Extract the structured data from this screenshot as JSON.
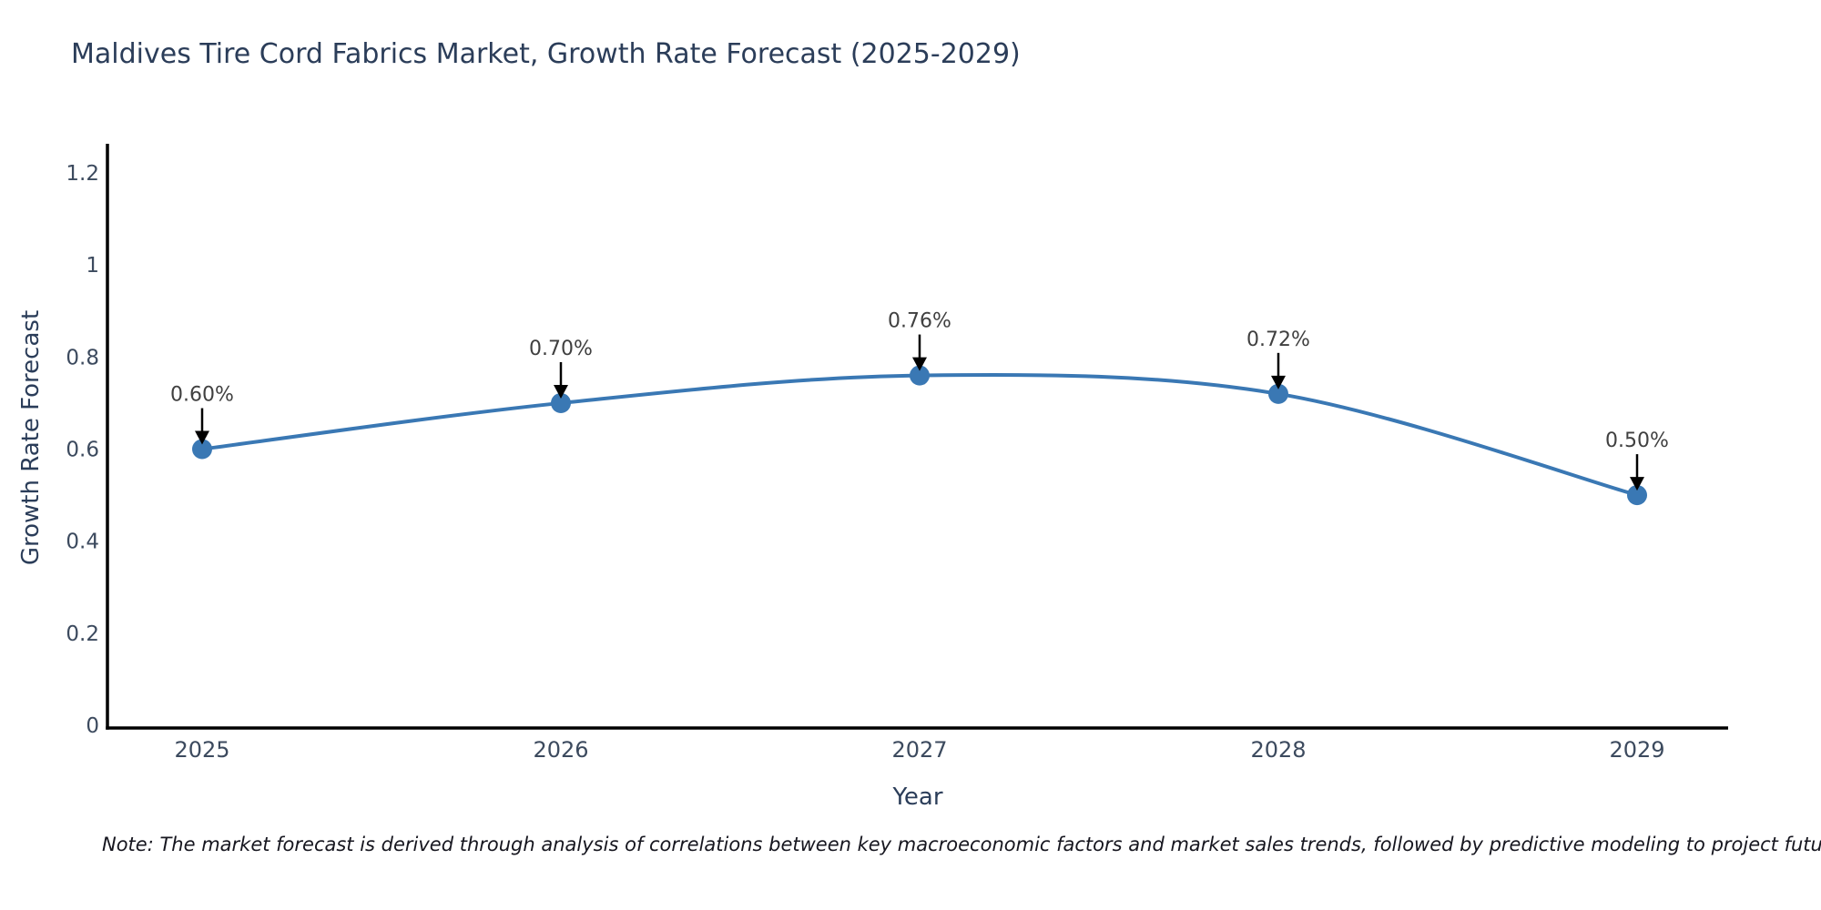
{
  "note": "Note: The market forecast is derived through analysis of correlations between key macroeconomic factors and market sales trends, followed by predictive modeling to project future sales",
  "chart_data": {
    "type": "line",
    "title": "Maldives Tire Cord Fabrics Market, Growth Rate Forecast (2025-2029)",
    "xlabel": "Year",
    "ylabel": "Growth Rate Forecast",
    "x": [
      2025,
      2026,
      2027,
      2028,
      2029
    ],
    "series": [
      {
        "name": "Growth Rate Forecast",
        "values": [
          0.6,
          0.7,
          0.76,
          0.72,
          0.5
        ],
        "point_labels": [
          "0.60%",
          "0.70%",
          "0.76%",
          "0.72%",
          "0.50%"
        ]
      }
    ],
    "ylim": [
      0,
      1.27
    ],
    "yticks": [
      0,
      0.2,
      0.4,
      0.6,
      0.8,
      1,
      1.2
    ],
    "ytick_labels": [
      "0",
      "0.2",
      "0.4",
      "0.6",
      "0.8",
      "1",
      "1.2"
    ],
    "grid": false,
    "legend": "none",
    "line_shape": "spline",
    "colors": {
      "line": "#3a78b4",
      "marker": "#3a78b4",
      "axis": "#000000",
      "tick_text": "#3c4a5e",
      "title_text": "#2b3d59",
      "annotation_text": "#404040",
      "annotation_arrow": "#000000"
    }
  }
}
